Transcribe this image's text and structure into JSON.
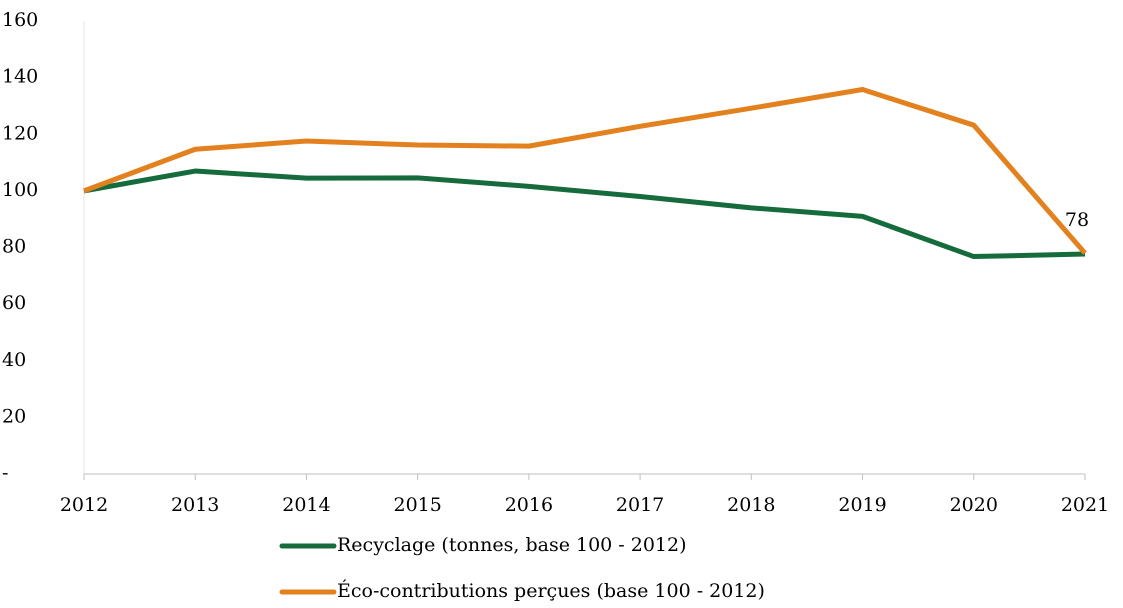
{
  "chart_data": {
    "type": "line",
    "categories": [
      "2012",
      "2013",
      "2014",
      "2015",
      "2016",
      "2017",
      "2018",
      "2019",
      "2020",
      "2021"
    ],
    "series": [
      {
        "name": "Recyclage (tonnes, base 100 - 2012)",
        "color": "#166b3c",
        "values": [
          100,
          107,
          104.5,
          104.6,
          101.6,
          98,
          94,
          91,
          76.8,
          77.7
        ]
      },
      {
        "name": "Éco-contributions perçues (base 100 - 2012)",
        "color": "#e3811f",
        "values": [
          100,
          114.7,
          117.6,
          116.2,
          115.8,
          122.8,
          129.2,
          135.8,
          123.2,
          78
        ]
      }
    ],
    "ylim": [
      0,
      160
    ],
    "yticks": [
      {
        "value": 0,
        "label": "-"
      },
      20,
      40,
      60,
      80,
      100,
      120,
      140,
      160
    ],
    "grid": false
  }
}
